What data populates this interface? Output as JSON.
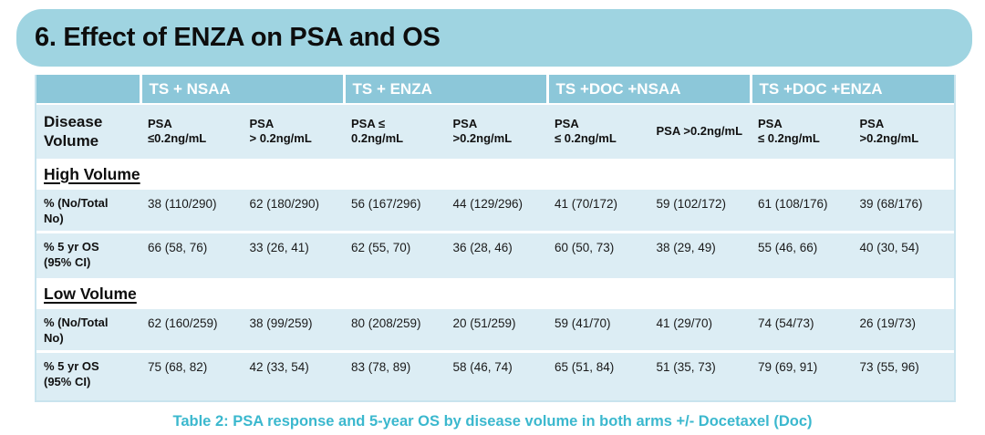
{
  "title": "6. Effect of ENZA on PSA and OS",
  "caption": "Table 2: PSA response and 5-year OS by disease volume in both arms +/- Docetaxel (Doc)",
  "colors": {
    "banner_blue": "#9fd4e1",
    "header_blue": "#8cc7d9",
    "row_pale_blue": "#dcedf4",
    "caption_teal": "#3bb8ce"
  },
  "table": {
    "row_header_label": "Disease Volume",
    "groups": [
      "TS + NSAA",
      "TS + ENZA",
      "TS +DOC +NSAA",
      "TS +DOC +ENZA"
    ],
    "subheaders": [
      "PSA\n≤0.2ng/mL",
      "PSA\n> 0.2ng/mL",
      "PSA ≤\n0.2ng/mL",
      "PSA\n>0.2ng/mL",
      "PSA\n≤ 0.2ng/mL",
      "PSA >0.2ng/mL",
      "PSA\n≤ 0.2ng/mL",
      "PSA\n>0.2ng/mL"
    ],
    "sections": [
      {
        "name": "High Volume",
        "rows": [
          {
            "label": "% (No/Total\nNo)",
            "values": [
              "38 (110/290)",
              "62 (180/290)",
              "56 (167/296)",
              "44 (129/296)",
              "41 (70/172)",
              "59 (102/172)",
              "61 (108/176)",
              "39 (68/176)"
            ]
          },
          {
            "label": "% 5 yr OS\n(95% CI)",
            "values": [
              "66 (58, 76)",
              "33 (26, 41)",
              "62 (55, 70)",
              "36 (28, 46)",
              "60 (50, 73)",
              "38 (29, 49)",
              "55 (46, 66)",
              "40 (30, 54)"
            ]
          }
        ]
      },
      {
        "name": "Low Volume",
        "rows": [
          {
            "label": "% (No/Total\nNo)",
            "values": [
              "62 (160/259)",
              "38 (99/259)",
              "80 (208/259)",
              "20 (51/259)",
              "59 (41/70)",
              "41 (29/70)",
              "74 (54/73)",
              "26 (19/73)"
            ]
          },
          {
            "label": "% 5 yr OS\n(95% CI)",
            "values": [
              "75 (68, 82)",
              "42 (33, 54)",
              "83 (78, 89)",
              "58 (46, 74)",
              "65 (51, 84)",
              "51 (35, 73)",
              "79 (69, 91)",
              "73 (55, 96)"
            ]
          }
        ]
      }
    ]
  }
}
